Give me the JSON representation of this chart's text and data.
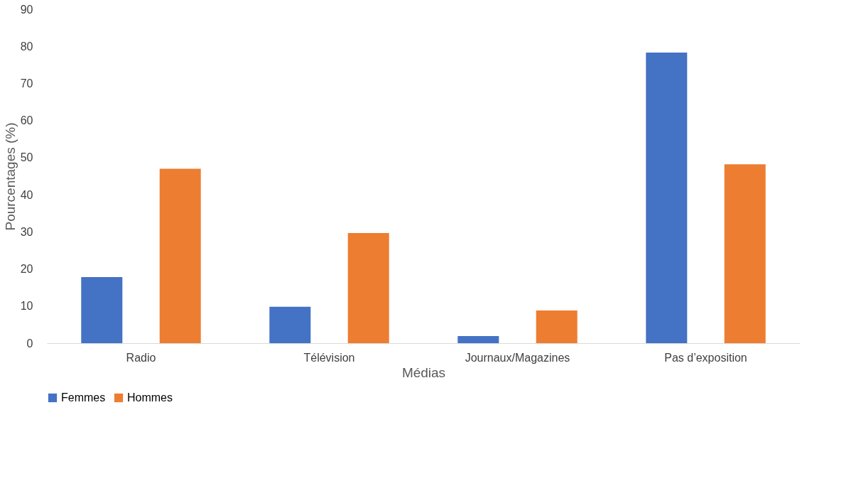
{
  "chart_data": {
    "type": "bar",
    "xlabel": "Médias",
    "ylabel": "Pourcentages (%)",
    "categories": [
      "Radio",
      "Télévision",
      "Journaux/Magazines",
      "Pas d’exposition"
    ],
    "series": [
      {
        "name": "Femmes",
        "color": "#4472c4",
        "values": [
          17.8,
          9.8,
          1.9,
          78.3
        ]
      },
      {
        "name": "Hommes",
        "color": "#ed7d31",
        "values": [
          47,
          29.7,
          8.8,
          48.2
        ]
      }
    ],
    "ylim": [
      0,
      90
    ],
    "yticks": [
      0,
      10,
      20,
      30,
      40,
      50,
      60,
      70,
      80,
      90
    ],
    "grid": false,
    "legend": "bottom"
  }
}
